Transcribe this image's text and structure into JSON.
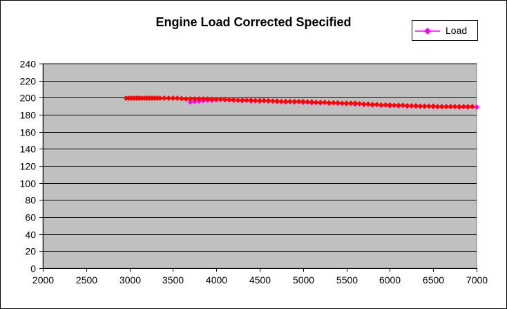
{
  "chart_data": {
    "type": "scatter",
    "title": "Engine Load Corrected Specified",
    "xlabel": "",
    "ylabel": "",
    "xlim": [
      2000,
      7000
    ],
    "ylim": [
      0,
      240
    ],
    "xticks": [
      2000,
      2500,
      3000,
      3500,
      4000,
      4500,
      5000,
      5500,
      6000,
      6500,
      7000
    ],
    "yticks": [
      0,
      20,
      40,
      60,
      80,
      100,
      120,
      140,
      160,
      180,
      200,
      220,
      240
    ],
    "grid": "horizontal",
    "plot_background": "#c0c0c0",
    "legend_position": "top-right",
    "series": [
      {
        "name": "Load",
        "color": "#ff00ff",
        "marker": "diamond",
        "x": [
          3700,
          3750,
          3800,
          3850,
          3900,
          3950,
          4000,
          4100,
          4200,
          4300,
          4400,
          4500,
          4600,
          4700,
          4800,
          4900,
          5000,
          5100,
          5200,
          5300,
          5400,
          5500,
          5600,
          5700,
          5800,
          5900,
          6000,
          6100,
          6200,
          6300,
          6400,
          6500,
          6600,
          6700,
          6800,
          6900,
          7000
        ],
        "y": [
          195,
          195.5,
          196,
          196.5,
          197,
          197,
          197.5,
          197.5,
          197,
          196.5,
          196,
          196,
          196,
          195.5,
          195,
          195,
          194.5,
          194,
          194,
          193.5,
          193.5,
          193,
          192.5,
          192,
          191.5,
          191,
          190.5,
          190.5,
          190,
          190,
          190,
          189.5,
          189.5,
          189.5,
          189,
          189,
          189
        ]
      },
      {
        "name": "",
        "color": "#ff0000",
        "marker": "diamond",
        "x": [
          2960,
          2990,
          3020,
          3050,
          3080,
          3110,
          3140,
          3170,
          3200,
          3230,
          3260,
          3290,
          3320,
          3350,
          3400,
          3450,
          3500,
          3550,
          3600,
          3650,
          3700,
          3750,
          3800,
          3850,
          3900,
          3950,
          4000,
          4050,
          4100,
          4150,
          4200,
          4250,
          4300,
          4350,
          4400,
          4450,
          4500,
          4550,
          4600,
          4650,
          4700,
          4750,
          4800,
          4850,
          4900,
          4950,
          5000,
          5050,
          5100,
          5150,
          5200,
          5250,
          5300,
          5350,
          5400,
          5450,
          5500,
          5550,
          5600,
          5650,
          5700,
          5750,
          5800,
          5850,
          5900,
          5950,
          6000,
          6050,
          6100,
          6150,
          6200,
          6250,
          6300,
          6350,
          6400,
          6450,
          6500,
          6550,
          6600,
          6650,
          6700,
          6750,
          6800,
          6850,
          6900,
          6950
        ],
        "y": [
          199.5,
          199.5,
          199.5,
          199.5,
          199.5,
          199.5,
          199.5,
          199.5,
          199.5,
          199.5,
          199.5,
          199.5,
          199.5,
          199.5,
          199.5,
          199.5,
          199.5,
          199.5,
          199,
          198.5,
          198.5,
          198.5,
          198.5,
          198.5,
          198.5,
          198,
          198,
          198,
          198,
          197.5,
          197.5,
          197,
          197,
          197,
          197,
          196.5,
          196.5,
          196.5,
          196.5,
          196,
          196,
          195.5,
          195.5,
          195.5,
          195.5,
          195.5,
          195.5,
          195,
          195,
          194.5,
          194.5,
          194.5,
          194,
          194,
          194,
          193.5,
          193.5,
          193.5,
          193.5,
          193,
          192.5,
          192.5,
          192,
          192,
          191.5,
          191.5,
          191.5,
          191,
          191,
          191,
          190.5,
          190.5,
          190.5,
          190,
          190,
          190,
          190,
          189.5,
          189.5,
          189.5,
          189.5,
          189.5,
          189.5,
          189.5,
          189.5,
          189.5
        ]
      }
    ]
  }
}
